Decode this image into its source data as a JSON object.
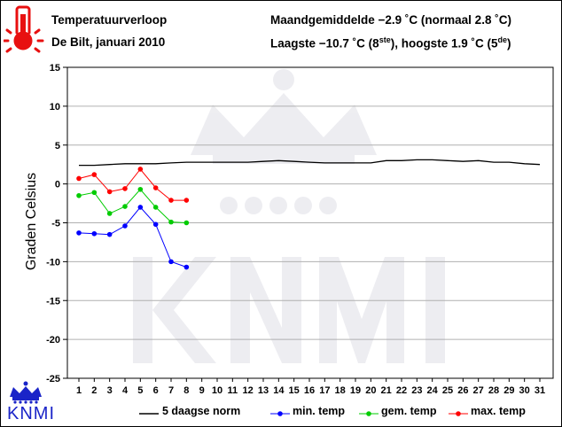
{
  "header": {
    "title_line1": "Temperatuurverloop",
    "title_line2": "De Bilt, januari 2010",
    "stats_line1": "Maandgemiddelde −2.9 ˚C (normaal 2.8 ˚C)",
    "stats_line2_prefix": "Laagste −10.7 ˚C (8",
    "stats_line2_sup1": "ste",
    "stats_line2_mid": "), hoogste 1.9 ˚C (5",
    "stats_line2_sup2": "de",
    "stats_line2_suffix": ")"
  },
  "logo": {
    "text": "KNMI"
  },
  "icons": {
    "thermometer": "thermometer-icon",
    "crown": "crown-icon"
  },
  "colors": {
    "norm": "#000000",
    "min": "#0000ff",
    "gem": "#00cc00",
    "max": "#ff0000",
    "thermometer": "#e81010",
    "logo": "#1a24c8"
  },
  "chart_data": {
    "type": "line",
    "title": "",
    "xlabel": "",
    "ylabel": "Graden Celsius",
    "ylim": [
      -25,
      15
    ],
    "yticks": [
      15,
      10,
      5,
      0,
      -5,
      -10,
      -15,
      -20,
      -25
    ],
    "x": [
      1,
      2,
      3,
      4,
      5,
      6,
      7,
      8,
      9,
      10,
      11,
      12,
      13,
      14,
      15,
      16,
      17,
      18,
      19,
      20,
      21,
      22,
      23,
      24,
      25,
      26,
      27,
      28,
      29,
      30,
      31
    ],
    "grid": true,
    "legend_position": "bottom",
    "series": [
      {
        "name": "5 daagse norm",
        "key": "norm",
        "markers": false,
        "x": [
          1,
          2,
          3,
          4,
          5,
          6,
          7,
          8,
          9,
          10,
          11,
          12,
          13,
          14,
          15,
          16,
          17,
          18,
          19,
          20,
          21,
          22,
          23,
          24,
          25,
          26,
          27,
          28,
          29,
          30,
          31
        ],
        "values": [
          2.4,
          2.4,
          2.5,
          2.6,
          2.6,
          2.6,
          2.7,
          2.8,
          2.8,
          2.8,
          2.8,
          2.8,
          2.9,
          3.0,
          2.9,
          2.8,
          2.7,
          2.7,
          2.7,
          2.7,
          3.0,
          3.0,
          3.1,
          3.1,
          3.0,
          2.9,
          3.0,
          2.8,
          2.8,
          2.6,
          2.5
        ]
      },
      {
        "name": "min. temp",
        "key": "min",
        "markers": true,
        "x": [
          1,
          2,
          3,
          4,
          5,
          6,
          7,
          8
        ],
        "values": [
          -6.3,
          -6.4,
          -6.5,
          -5.4,
          -3.0,
          -5.2,
          -10.0,
          -10.7
        ]
      },
      {
        "name": "gem. temp",
        "key": "gem",
        "markers": true,
        "x": [
          1,
          2,
          3,
          4,
          5,
          6,
          7,
          8
        ],
        "values": [
          -1.5,
          -1.1,
          -3.8,
          -2.9,
          -0.7,
          -3.0,
          -4.9,
          -5.0
        ]
      },
      {
        "name": "max. temp",
        "key": "max",
        "markers": true,
        "x": [
          1,
          2,
          3,
          4,
          5,
          6,
          7,
          8
        ],
        "values": [
          0.7,
          1.2,
          -1.0,
          -0.6,
          1.9,
          -0.5,
          -2.1,
          -2.1
        ]
      }
    ]
  }
}
